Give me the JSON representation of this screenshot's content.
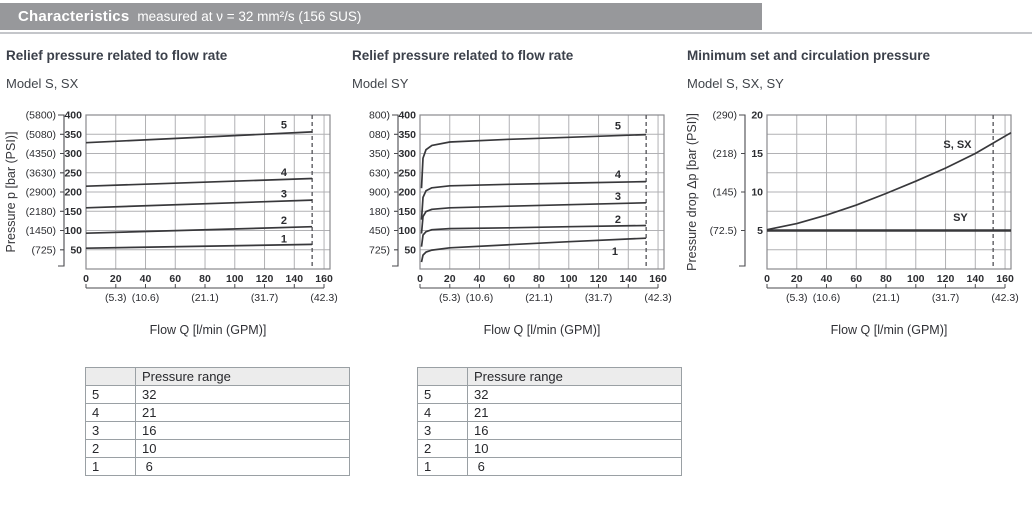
{
  "header": {
    "title": "Characteristics",
    "subtitle": "measured at ν = 32 mm²/s (156 SUS)",
    "bar_color": "#97989b",
    "rule_color": "#c4c6ca"
  },
  "colors": {
    "grid": "#b1b1b4",
    "border": "#8a8a8e",
    "curve": "#38383b",
    "dashed": "#515156",
    "ruler": "#4a4a4e",
    "tick_text": "#2c2d31",
    "label_text": "#36363a"
  },
  "chart_data": [
    {
      "type": "line",
      "title": "Relief pressure related to flow rate",
      "model": "Model S, SX",
      "ylabel": "Pressure p [bar (PSI)]",
      "xlabel": "Flow Q [l/min (GPM)]",
      "xlim": [
        0,
        164
      ],
      "ylim": [
        0,
        400
      ],
      "x_grid_step": 20,
      "y_grid_step": 50,
      "x_ticks": [
        0,
        20,
        40,
        60,
        80,
        100,
        120,
        140,
        160
      ],
      "y_ticks": [
        400,
        350,
        300,
        250,
        200,
        150,
        100,
        50
      ],
      "psi_labels": [
        "(5800)",
        "(5080)",
        "(4350)",
        "(3630)",
        "(2900)",
        "(2180)",
        "(1450)",
        "(725)"
      ],
      "gpm_labels": [
        {
          "x": 20,
          "label": "(5.3)"
        },
        {
          "x": 40,
          "label": "(10.6)"
        },
        {
          "x": 80,
          "label": "(21.1)"
        },
        {
          "x": 120,
          "label": "(31.7)"
        },
        {
          "x": 160,
          "label": "(42.3)"
        }
      ],
      "dashed_x": 152,
      "series": [
        {
          "name": "5",
          "points": [
            [
              0,
              328
            ],
            [
              152,
              356
            ]
          ],
          "label_at": [
            133,
            374
          ]
        },
        {
          "name": "4",
          "points": [
            [
              0,
              215
            ],
            [
              152,
              235
            ]
          ],
          "label_at": [
            133,
            251
          ]
        },
        {
          "name": "3",
          "points": [
            [
              0,
              159
            ],
            [
              152,
              179
            ]
          ],
          "label_at": [
            133,
            195
          ]
        },
        {
          "name": "2",
          "points": [
            [
              0,
              93
            ],
            [
              152,
              110
            ]
          ],
          "label_at": [
            133,
            126
          ]
        },
        {
          "name": "1",
          "points": [
            [
              0,
              54
            ],
            [
              152,
              64
            ]
          ],
          "label_at": [
            133,
            78
          ]
        }
      ]
    },
    {
      "type": "line",
      "title": "Relief pressure related to flow rate",
      "model": "Model SY",
      "ylabel": "",
      "xlabel": "Flow Q [l/min (GPM)]",
      "xlim": [
        0,
        164
      ],
      "ylim": [
        0,
        400
      ],
      "x_grid_step": 20,
      "y_grid_step": 50,
      "x_ticks": [
        0,
        20,
        40,
        60,
        80,
        100,
        120,
        140,
        160
      ],
      "y_ticks": [
        400,
        350,
        300,
        250,
        200,
        150,
        100,
        50
      ],
      "psi_labels": [
        "800)",
        "080)",
        "350)",
        "630)",
        "900)",
        "180)",
        "450)",
        "725)"
      ],
      "gpm_labels": [
        {
          "x": 20,
          "label": "(5.3)"
        },
        {
          "x": 40,
          "label": "(10.6)"
        },
        {
          "x": 80,
          "label": "(21.1)"
        },
        {
          "x": 120,
          "label": "(31.7)"
        },
        {
          "x": 160,
          "label": "(42.3)"
        }
      ],
      "dashed_x": 152,
      "series": [
        {
          "name": "5",
          "points": [
            [
              1,
              210
            ],
            [
              2,
              288
            ],
            [
              4,
              310
            ],
            [
              8,
              321
            ],
            [
              20,
              330
            ],
            [
              60,
              337
            ],
            [
              100,
              342
            ],
            [
              152,
              349
            ]
          ],
          "label_at": [
            133,
            372
          ]
        },
        {
          "name": "4",
          "points": [
            [
              1,
              128
            ],
            [
              2,
              186
            ],
            [
              4,
              203
            ],
            [
              8,
              211
            ],
            [
              20,
              216
            ],
            [
              60,
              220
            ],
            [
              100,
              223
            ],
            [
              152,
              227
            ]
          ],
          "label_at": [
            133,
            245
          ]
        },
        {
          "name": "3",
          "points": [
            [
              1,
              92
            ],
            [
              2,
              136
            ],
            [
              4,
              149
            ],
            [
              8,
              155
            ],
            [
              20,
              159
            ],
            [
              60,
              163
            ],
            [
              100,
              167
            ],
            [
              152,
              172
            ]
          ],
          "label_at": [
            133,
            188
          ]
        },
        {
          "name": "2",
          "points": [
            [
              1,
              58
            ],
            [
              2,
              88
            ],
            [
              4,
              97
            ],
            [
              8,
              102
            ],
            [
              20,
              105
            ],
            [
              60,
              107
            ],
            [
              100,
              110
            ],
            [
              152,
              113
            ]
          ],
          "label_at": [
            133,
            128
          ]
        },
        {
          "name": "1",
          "points": [
            [
              1,
              18
            ],
            [
              2,
              36
            ],
            [
              4,
              44
            ],
            [
              8,
              49
            ],
            [
              20,
              55
            ],
            [
              60,
              63
            ],
            [
              100,
              71
            ],
            [
              152,
              80
            ]
          ],
          "label_at": [
            131,
            45
          ]
        }
      ]
    },
    {
      "type": "line",
      "title": "Minimum set and circulation pressure",
      "model": "Model S, SX, SY",
      "ylabel": "Pressure drop Δp [bar (PSI)]",
      "xlabel": "Flow Q [l/min (GPM)]",
      "xlim": [
        0,
        164
      ],
      "ylim": [
        0,
        20
      ],
      "x_grid_step": 20,
      "y_grid_step": 2.5,
      "x_ticks": [
        0,
        20,
        40,
        60,
        80,
        100,
        120,
        140,
        160
      ],
      "y_ticks": [
        20,
        15,
        10,
        5
      ],
      "psi_labels": [
        "(290)",
        "(218)",
        "(145)",
        "(72.5)"
      ],
      "gpm_labels": [
        {
          "x": 20,
          "label": "(5.3)"
        },
        {
          "x": 40,
          "label": "(10.6)"
        },
        {
          "x": 80,
          "label": "(21.1)"
        },
        {
          "x": 120,
          "label": "(31.7)"
        },
        {
          "x": 160,
          "label": "(42.3)"
        }
      ],
      "dashed_x": 152,
      "series": [
        {
          "name": "S, SX",
          "points": [
            [
              0,
              5.1
            ],
            [
              20,
              5.9
            ],
            [
              40,
              7.0
            ],
            [
              60,
              8.3
            ],
            [
              80,
              9.8
            ],
            [
              100,
              11.4
            ],
            [
              120,
              13.1
            ],
            [
              140,
              15.0
            ],
            [
              164,
              17.7
            ]
          ],
          "label_at": [
            128,
            16.2
          ]
        },
        {
          "name": "SY",
          "points": [
            [
              0,
              5
            ],
            [
              164,
              5
            ]
          ],
          "width": 2.6,
          "label_at": [
            130,
            6.7
          ]
        }
      ]
    }
  ],
  "tables": [
    {
      "columns": [
        "",
        "Pressure range"
      ],
      "rows": [
        [
          "5",
          "32"
        ],
        [
          "4",
          "21"
        ],
        [
          "3",
          "16"
        ],
        [
          "2",
          "10"
        ],
        [
          "1",
          " 6"
        ]
      ]
    },
    {
      "columns": [
        "",
        "Pressure range"
      ],
      "rows": [
        [
          "5",
          "32"
        ],
        [
          "4",
          "21"
        ],
        [
          "3",
          "16"
        ],
        [
          "2",
          "10"
        ],
        [
          "1",
          " 6"
        ]
      ]
    }
  ]
}
